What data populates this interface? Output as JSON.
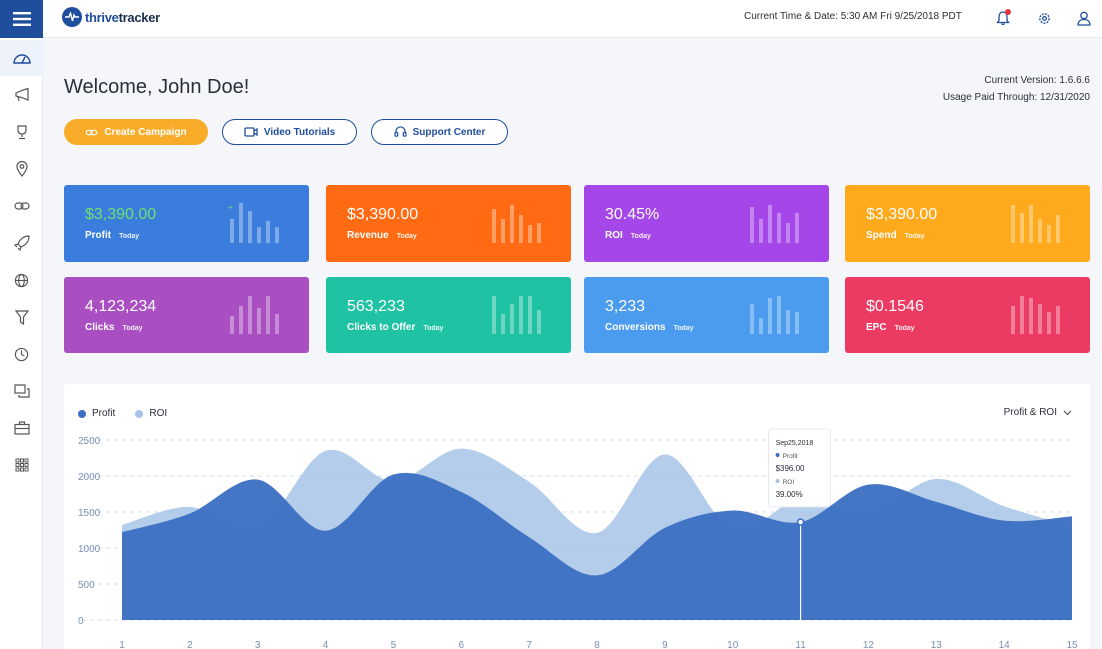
{
  "app": {
    "logo_part1": "thrive",
    "logo_part2": "tracker"
  },
  "topbar": {
    "datetime": "Current Time & Date: 5:30 AM Fri 9/25/2018 PDT",
    "icons": [
      "bell-icon",
      "gear-icon",
      "user-icon"
    ]
  },
  "sidebar": {
    "items": [
      {
        "icon": "dashboard-icon",
        "active": true
      },
      {
        "icon": "megaphone-icon",
        "active": false
      },
      {
        "icon": "trophy-icon",
        "active": false
      },
      {
        "icon": "location-pin-icon",
        "active": false
      },
      {
        "icon": "link-icon",
        "active": false
      },
      {
        "icon": "rocket-icon",
        "active": false
      },
      {
        "icon": "globe-icon",
        "active": false
      },
      {
        "icon": "funnel-icon",
        "active": false
      },
      {
        "icon": "clock-icon",
        "active": false
      },
      {
        "icon": "windows-icon",
        "active": false
      },
      {
        "icon": "briefcase-icon",
        "active": false
      },
      {
        "icon": "grid-icon",
        "active": false
      }
    ]
  },
  "header": {
    "welcome": "Welcome, John Doe!",
    "version": "Current Version: 1.6.6.6",
    "usage": "Usage Paid Through: 12/31/2020"
  },
  "actions": {
    "create_campaign": "Create Campaign",
    "video_tutorials": "Video Tutorials",
    "support_center": "Support Center"
  },
  "stats": [
    {
      "value": "$3,390.00",
      "label": "Profit",
      "sub": "Today",
      "color": "#3b7ddd",
      "bars": [
        0.6,
        1,
        0.8,
        0.4,
        0.55,
        0.4
      ]
    },
    {
      "value": "$3,390.00",
      "label": "Revenue",
      "sub": "Today",
      "color": "#ff6a13",
      "bars": [
        0.85,
        0.6,
        0.95,
        0.7,
        0.45,
        0.5
      ]
    },
    {
      "value": "30.45%",
      "label": "ROI",
      "sub": "Today",
      "color": "#a446e8",
      "bars": [
        0.9,
        0.6,
        0.95,
        0.75,
        0.5,
        0.75
      ]
    },
    {
      "value": "$3,390.00",
      "label": "Spend",
      "sub": "Today",
      "color": "#ffa91c",
      "bars": [
        0.95,
        0.75,
        0.95,
        0.6,
        0.45,
        0.7
      ]
    },
    {
      "value": "4,123,234",
      "label": "Clicks",
      "sub": "Today",
      "color": "#a94fc1",
      "bars": [
        0.45,
        0.7,
        0.95,
        0.65,
        0.95,
        0.5
      ]
    },
    {
      "value": "563,233",
      "label": "Clicks to Offer",
      "sub": "Today",
      "color": "#1fc2a3",
      "bars": [
        0.95,
        0.5,
        0.75,
        0.95,
        0.95,
        0.6
      ]
    },
    {
      "value": "3,233",
      "label": "Conversions",
      "sub": "Today",
      "color": "#4b9bef",
      "bars": [
        0.75,
        0.4,
        0.9,
        0.95,
        0.6,
        0.55
      ]
    },
    {
      "value": "$0.1546",
      "label": "EPC",
      "sub": "Today",
      "color": "#ec3b63",
      "bars": [
        0.7,
        0.95,
        0.9,
        0.75,
        0.55,
        0.7
      ]
    }
  ],
  "chart": {
    "select_label": "Profit & ROI",
    "tooltip": {
      "date": "Sep25,2018",
      "profit_label": "Profit",
      "profit_value": "$396.00",
      "roi_label": "ROI",
      "roi_value": "39.00%"
    }
  },
  "chart_data": {
    "type": "area",
    "series": [
      {
        "name": "Profit",
        "color": "#3b6fc2",
        "values": [
          1220,
          1480,
          1950,
          1240,
          2020,
          1780,
          1150,
          620,
          1280,
          1520,
          1360,
          1880,
          1640,
          1380,
          1440
        ]
      },
      {
        "name": "ROI",
        "color": "#a7c4e6",
        "values": [
          1320,
          1570,
          1260,
          2350,
          1930,
          2380,
          1920,
          1210,
          2300,
          1260,
          1680,
          1480,
          1960,
          1580,
          1300
        ]
      }
    ],
    "x": [
      1,
      2,
      3,
      4,
      5,
      6,
      7,
      8,
      9,
      10,
      11,
      12,
      13,
      14,
      15
    ],
    "yticks": [
      0,
      500,
      1000,
      1500,
      2000,
      2500
    ],
    "ylim": [
      0,
      2500
    ],
    "tooltip_x": 11,
    "grid": true,
    "legend": "top-left"
  }
}
